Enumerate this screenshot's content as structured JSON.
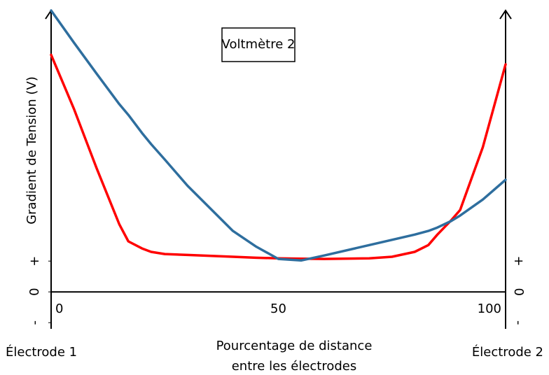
{
  "chart_data": {
    "type": "line",
    "annotation": "Voltmètre 2",
    "y_label": "Gradient de Tension (V)",
    "x_label": [
      "Pourcentage de distance",
      "entre les électrodes"
    ],
    "left_label": "Électrode 1",
    "right_label": "Électrode 2",
    "x": [
      0,
      5,
      10,
      15,
      17,
      20,
      22,
      25,
      30,
      40,
      45,
      50,
      55,
      60,
      70,
      75,
      80,
      83,
      85,
      88,
      90,
      95,
      100
    ],
    "series": [
      {
        "color": "#ff0000",
        "values": [
          7.7,
          5.95,
          4.02,
          2.2,
          1.64,
          1.41,
          1.3,
          1.23,
          1.2,
          1.14,
          1.11,
          1.09,
          1.08,
          1.07,
          1.09,
          1.14,
          1.3,
          1.52,
          1.86,
          2.32,
          2.66,
          4.7,
          7.39
        ]
      },
      {
        "color": "#2e6e9e",
        "values": [
          9.14,
          8.1,
          7.09,
          6.1,
          5.75,
          5.16,
          4.8,
          4.3,
          3.45,
          1.98,
          1.48,
          1.07,
          1.02,
          1.18,
          1.52,
          1.69,
          1.86,
          1.98,
          2.09,
          2.3,
          2.48,
          3.0,
          3.64
        ]
      }
    ],
    "xlim": [
      0,
      100
    ],
    "xticks": [
      0,
      50,
      100
    ],
    "ylim": [
      -1.2,
      9.14
    ],
    "yticks": [
      {
        "value": 1,
        "label": "+"
      },
      0,
      {
        "value": -1,
        "label": "-"
      }
    ],
    "grid": false
  }
}
